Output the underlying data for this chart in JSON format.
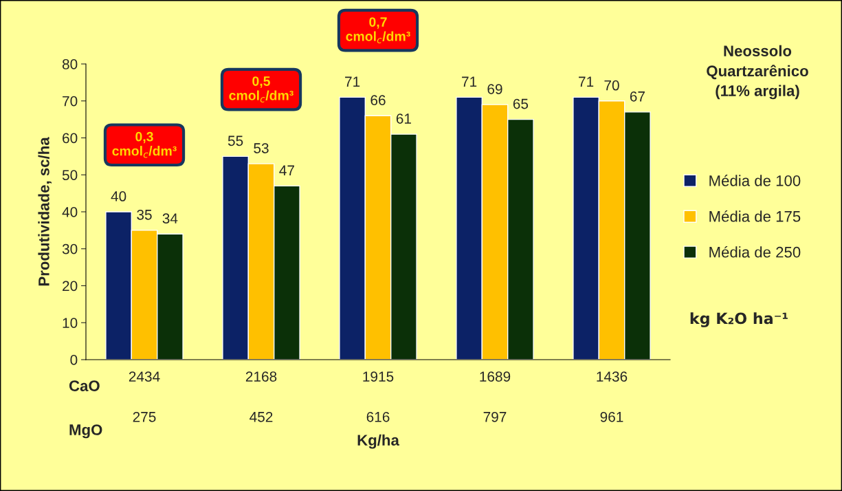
{
  "chart_data": {
    "type": "bar",
    "ylabel": "Produtividade, sc/ha",
    "xlabel": "Kg/ha",
    "categories": [
      "2434\n275",
      "2168\n452",
      "1915\n616",
      "1689\n797",
      "1436\n961"
    ],
    "series": [
      {
        "name": "Média de 100",
        "color": "#0c2266",
        "values": [
          40,
          55,
          71,
          71,
          71
        ]
      },
      {
        "name": "Média de 175",
        "color": "#ffc000",
        "values": [
          35,
          53,
          66,
          69,
          70
        ]
      },
      {
        "name": "Média de 250",
        "color": "#0b3008",
        "values": [
          34,
          47,
          61,
          65,
          67
        ]
      }
    ],
    "ylim": [
      0,
      80
    ],
    "yticks": [
      0,
      10,
      20,
      30,
      40,
      50,
      60,
      70,
      80
    ],
    "data_labels": true,
    "grid": false,
    "legend": "right",
    "legend_title": "kg K₂O ha⁻¹",
    "annotations": [
      "0,3\ncmol$_{c}$/dm³",
      "0,5\ncmol$_{c}$/dm³",
      "0,7\ncmol$_{c}$/dm³",
      "Neossolo\nQuartzarênico\n(11% argila)",
      "CaO",
      "MgO"
    ]
  }
}
